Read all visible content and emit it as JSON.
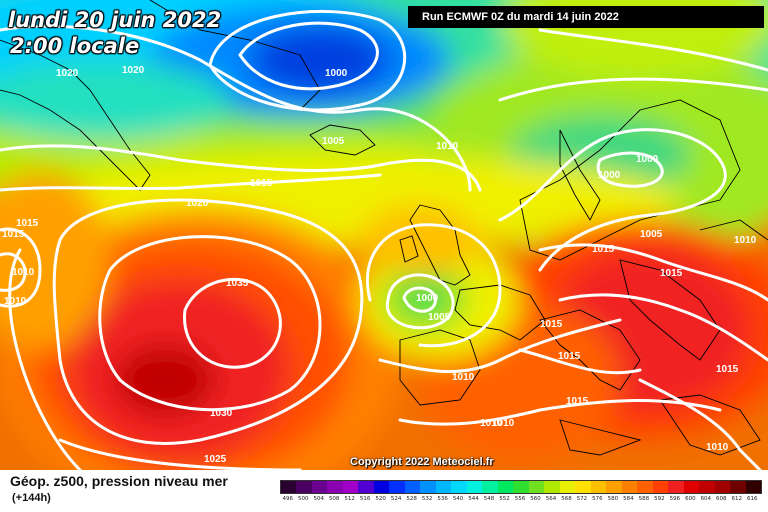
{
  "header": {
    "date_line_1": "lundi 20 juin 2022",
    "date_line_2": "2:00 locale",
    "run_banner": "Run ECMWF 0Z du mardi 14 juin 2022"
  },
  "footer": {
    "title": "Géop. z500, pression niveau mer",
    "subtitle": "(+144h)",
    "copyright": "Copyright 2022 Meteociel.fr"
  },
  "color_scale": {
    "labels": [
      "496",
      "500",
      "504",
      "508",
      "512",
      "516",
      "520",
      "524",
      "528",
      "532",
      "536",
      "540",
      "544",
      "548",
      "552",
      "556",
      "560",
      "564",
      "568",
      "572",
      "576",
      "580",
      "584",
      "588",
      "592",
      "596",
      "600",
      "604",
      "608",
      "612",
      "616"
    ],
    "colors": [
      "#2a0030",
      "#4a0060",
      "#6a0090",
      "#8a00b0",
      "#a000c8",
      "#5000d0",
      "#0000e0",
      "#0030ff",
      "#0060ff",
      "#0090ff",
      "#00b8ff",
      "#00d8ff",
      "#00f0e0",
      "#00f0a0",
      "#00e860",
      "#30e030",
      "#70e020",
      "#b0e800",
      "#e8f000",
      "#ffe000",
      "#ffc000",
      "#ffa000",
      "#ff8000",
      "#ff6000",
      "#ff4000",
      "#f02020",
      "#e00000",
      "#c00000",
      "#a00000",
      "#700000",
      "#300000"
    ]
  },
  "pressure_labels": [
    {
      "text": "1020"
    },
    {
      "text": "1020"
    },
    {
      "text": "1000"
    },
    {
      "text": "1005"
    },
    {
      "text": "1010"
    },
    {
      "text": "1015"
    },
    {
      "text": "1020"
    },
    {
      "text": "1015"
    },
    {
      "text": "1015"
    },
    {
      "text": "1010"
    },
    {
      "text": "1010"
    },
    {
      "text": "1035"
    },
    {
      "text": "1030"
    },
    {
      "text": "1025"
    },
    {
      "text": "1000"
    },
    {
      "text": "1005"
    },
    {
      "text": "1010"
    },
    {
      "text": "1010"
    },
    {
      "text": "1015"
    },
    {
      "text": "1015"
    },
    {
      "text": "1015"
    },
    {
      "text": "1015"
    },
    {
      "text": "1010"
    },
    {
      "text": "1000"
    },
    {
      "text": "1000"
    },
    {
      "text": "1005"
    },
    {
      "text": "1010"
    },
    {
      "text": "1015"
    },
    {
      "text": "1015"
    },
    {
      "text": "1010"
    }
  ]
}
